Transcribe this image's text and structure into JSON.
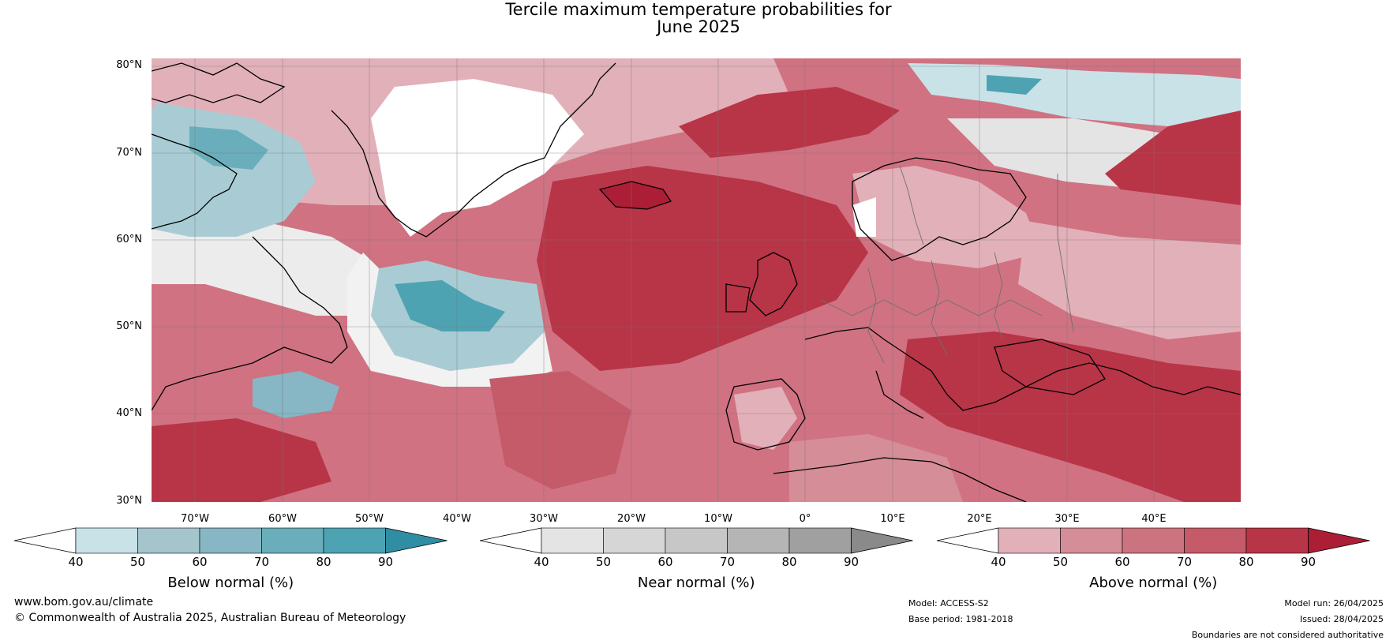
{
  "title_line1": "Tercile maximum temperature probabilities for",
  "title_line2": "June 2025",
  "map": {
    "lat_labels": [
      "80°N",
      "70°N",
      "60°N",
      "50°N",
      "40°N",
      "30°N"
    ],
    "lon_labels": [
      "70°W",
      "60°W",
      "50°W",
      "40°W",
      "30°W",
      "20°W",
      "10°W",
      "0°",
      "10°E",
      "20°E",
      "30°E",
      "40°E"
    ],
    "colors": {
      "above_high": "#b52a44",
      "above_mid": "#cc5d6f",
      "above_low": "#e2b0b9",
      "near": "#e4e4e4",
      "below": "#7fb3c0",
      "below_high": "#3f9aad"
    }
  },
  "colorbars": [
    {
      "label": "Below normal (%)",
      "ticks": [
        "40",
        "50",
        "60",
        "70",
        "80",
        "90"
      ],
      "colors": [
        "#c9e2e8",
        "#a5c5cc",
        "#87b6c4",
        "#6baebb",
        "#4ea3b3",
        "#2f8ea3"
      ]
    },
    {
      "label": "Near normal (%)",
      "ticks": [
        "40",
        "50",
        "60",
        "70",
        "80",
        "90"
      ],
      "colors": [
        "#e4e4e4",
        "#d6d6d6",
        "#c7c7c7",
        "#b5b5b5",
        "#a0a0a0",
        "#8a8a8a"
      ]
    },
    {
      "label": "Above normal (%)",
      "ticks": [
        "40",
        "50",
        "60",
        "70",
        "80",
        "90"
      ],
      "colors": [
        "#e2b0b9",
        "#d58d98",
        "#cc7380",
        "#c55a69",
        "#b83447",
        "#ac1e35"
      ]
    }
  ],
  "footer": {
    "website": "www.bom.gov.au/climate",
    "copyright": "© Commonwealth of Australia 2025, Australian Bureau of Meteorology",
    "model": "Model: ACCESS-S2",
    "base_period": "Base period: 1981-2018",
    "model_run": "Model run: 26/04/2025",
    "issued": "Issued: 28/04/2025",
    "disclaimer": "Boundaries are not considered authoritative"
  }
}
